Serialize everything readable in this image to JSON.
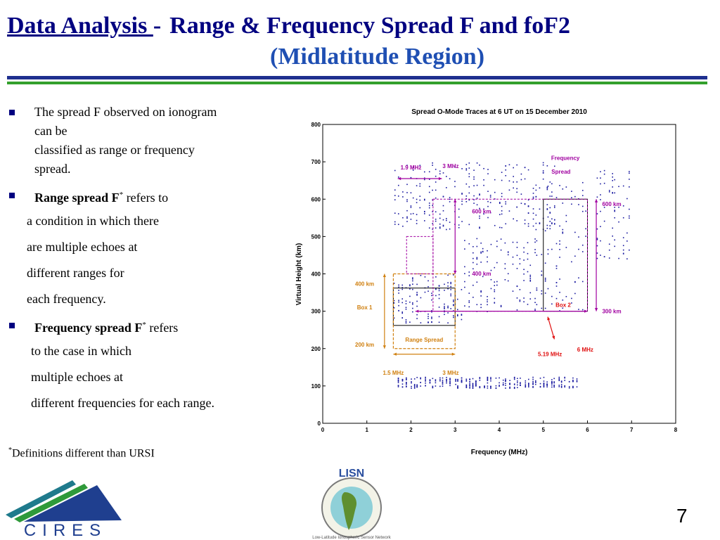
{
  "title": {
    "part1": "Data Analysis ",
    "dash": "-",
    "part2": "Range & Frequency Spread F and foF2",
    "line2": "(Midlatitude Region)"
  },
  "bullets": {
    "b1": {
      "line1": "The spread F observed on ionogram",
      "line2": "can be",
      "line3": "classified as range or frequency",
      "line4": "spread."
    },
    "b2": {
      "bold": "Range spread F",
      "sup": "*",
      "rest": " refers to",
      "l1": "a condition in which there",
      "l2": "are multiple echoes at",
      "l3": "different ranges for",
      "l4": "each frequency."
    },
    "b3": {
      "bold": "Frequency spread F",
      "sup": "*",
      "rest": " refers",
      "l1": "to the case in which",
      "l2": "multiple echoes at",
      "l3": "different frequencies for each range."
    }
  },
  "footnote": {
    "sup": "*",
    "text": "Definitions different than URSI"
  },
  "page_number": "7",
  "logos": {
    "cires": "CIRES",
    "lisn": "LISN",
    "lisn_subtitle": "Low-Latitude Ionospheric Sensor Network"
  },
  "colors": {
    "title_dark": "#000080",
    "title_blue": "#1f4fb3",
    "trace": "#1a1aa0",
    "annot_purple": "#a000a0",
    "annot_orange": "#d08010",
    "annot_red": "#e01010",
    "bar_blue": "#1f2f8f",
    "bar_green": "#33a02c"
  },
  "chart_data": {
    "type": "scatter",
    "title": "Spread O-Mode Traces at 6 UT on 15 December 2010",
    "xlabel": "Frequency (MHz)",
    "ylabel": "Virtual Height (km)",
    "xlim": [
      0,
      8
    ],
    "ylim": [
      0,
      800
    ],
    "xticks": [
      "0",
      "1",
      "2",
      "3",
      "4",
      "5",
      "6",
      "7",
      "8"
    ],
    "yticks": [
      "0",
      "100",
      "200",
      "300",
      "400",
      "500",
      "600",
      "700",
      "800"
    ],
    "grid": false,
    "trace_regions": [
      {
        "name": "upper F trace",
        "freq_range": [
          1.6,
          5.3
        ],
        "height_range": [
          520,
          700
        ]
      },
      {
        "name": "lower F trace",
        "freq_range": [
          1.6,
          3.2
        ],
        "height_range": [
          270,
          400
        ]
      },
      {
        "name": "rising F trace",
        "freq_range": [
          3.2,
          5.0
        ],
        "height_range": [
          300,
          500
        ]
      },
      {
        "name": "frequency spread region",
        "freq_range": [
          5.0,
          6.0
        ],
        "height_range": [
          300,
          650
        ]
      },
      {
        "name": "high frequency scatter",
        "freq_range": [
          6.2,
          7.0
        ],
        "height_range": [
          440,
          680
        ]
      },
      {
        "name": "E region trace",
        "freq_range": [
          1.7,
          5.8
        ],
        "height_range": [
          95,
          125
        ]
      }
    ],
    "boxes": [
      {
        "label": "Box 1",
        "x": [
          1.6,
          3.0
        ],
        "y": [
          262,
          362
        ]
      },
      {
        "label": "Box 2",
        "x": [
          5.0,
          6.0
        ],
        "y": [
          300,
          600
        ]
      }
    ],
    "annotations": {
      "a_19": "1.9 MHz",
      "a_3a": "3 MHz",
      "a_freq1": "Frequency",
      "a_freq2": "Spread",
      "a_600a": "600 km",
      "a_600b": "600 km",
      "a_400a": "400 km",
      "a_400b": "400 km",
      "a_300": "300 km",
      "a_200": "200 km",
      "a_box1": "Box 1",
      "a_box2": "Box 2",
      "a_range": "Range Spread",
      "a_519": "5.19 MHz",
      "a_6": "6 MHz",
      "a_15": "1.5 MHz",
      "a_3b": "3 MHz"
    }
  }
}
